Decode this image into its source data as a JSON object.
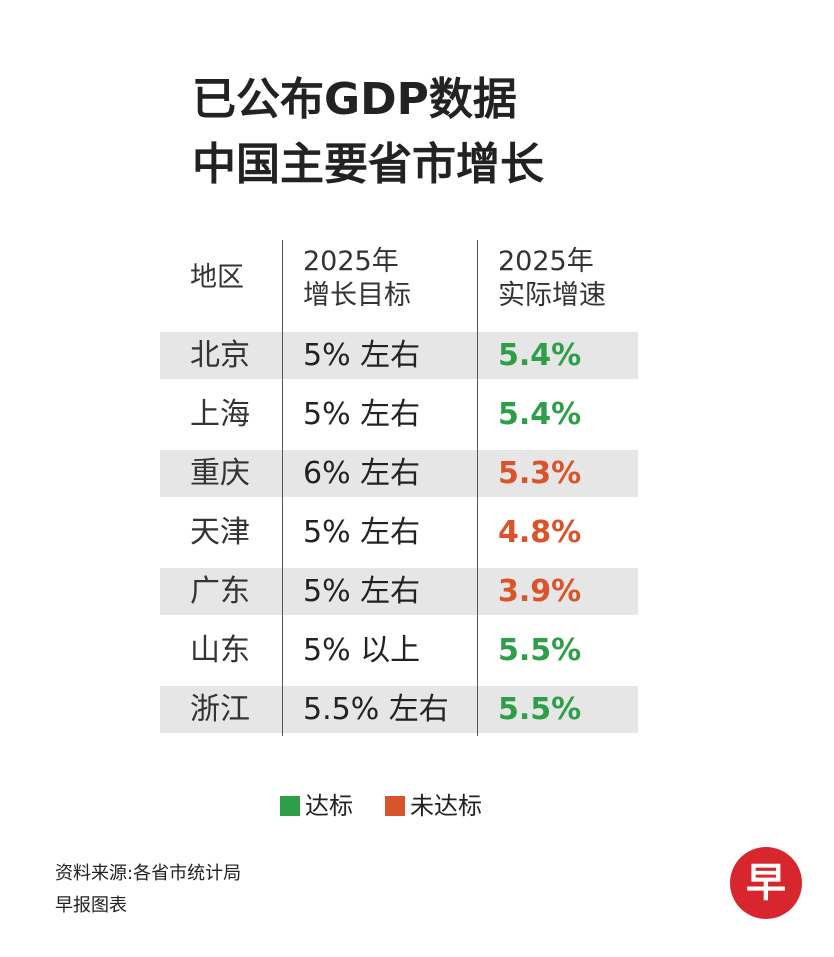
{
  "header": {
    "title": [
      "已公布GDP数据",
      "中国主要省市增长"
    ]
  },
  "table": {
    "columns": [
      [
        "地区"
      ],
      [
        "2025年",
        "增长目标"
      ],
      [
        "2025年",
        "实际增速"
      ]
    ],
    "rows": [
      {
        "region": "北京",
        "target": "5% 左右",
        "actual": "5.4%",
        "color": "#2e9e48"
      },
      {
        "region": "上海",
        "target": "5% 左右",
        "actual": "5.4%",
        "color": "#2e9e48"
      },
      {
        "region": "重庆",
        "target": "6% 左右",
        "actual": "5.3%",
        "color": "#d9532b"
      },
      {
        "region": "天津",
        "target": "5% 左右",
        "actual": "4.8%",
        "color": "#d9532b"
      },
      {
        "region": "广东",
        "target": "5% 左右",
        "actual": "3.9%",
        "color": "#d9532b"
      },
      {
        "region": "山东",
        "target": "5% 以上",
        "actual": "5.5%",
        "color": "#2e9e48"
      },
      {
        "region": "浙江",
        "target": "5.5% 左右",
        "actual": "5.5%",
        "color": "#2e9e48"
      }
    ]
  },
  "legend": [
    {
      "label": "达标",
      "color": "#2e9e48"
    },
    {
      "label": "未达标",
      "color": "#d9532b"
    }
  ],
  "footer": {
    "source": "资料来源:各省市统计局",
    "credit": "早报图表"
  },
  "logo": "早"
}
